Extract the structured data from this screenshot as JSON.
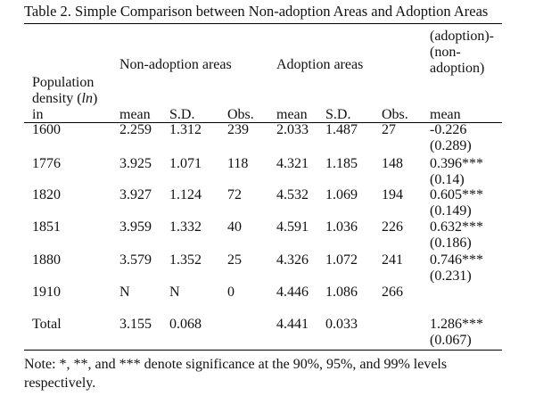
{
  "caption": "Table 2. Simple Comparison between Non-adoption Areas and Adoption Areas",
  "header": {
    "group_non_adoption": "Non-adoption areas",
    "group_adoption": "Adoption areas",
    "diff_label_lines": [
      "(adoption)-",
      "(non-",
      "adoption)"
    ],
    "row_label_lines": [
      "Population",
      "density (",
      "ln",
      ")",
      "in"
    ],
    "columns": [
      "mean",
      "S.D.",
      "Obs.",
      "mean",
      "S.D.",
      "Obs.",
      "mean"
    ]
  },
  "rows": [
    {
      "year": "1600",
      "na_mean": "2.259",
      "na_sd": "1.312",
      "na_obs": "239",
      "a_mean": "2.033",
      "a_sd": "1.487",
      "a_obs": "27",
      "diff": "-0.226",
      "diff_se": "(0.289)"
    },
    {
      "year": "1776",
      "na_mean": "3.925",
      "na_sd": "1.071",
      "na_obs": "118",
      "a_mean": "4.321",
      "a_sd": "1.185",
      "a_obs": "148",
      "diff": "0.396***",
      "diff_se": "(0.14)"
    },
    {
      "year": "1820",
      "na_mean": "3.927",
      "na_sd": "1.124",
      "na_obs": "72",
      "a_mean": "4.532",
      "a_sd": "1.069",
      "a_obs": "194",
      "diff": "0.605***",
      "diff_se": "(0.149)"
    },
    {
      "year": "1851",
      "na_mean": "3.959",
      "na_sd": "1.332",
      "na_obs": "40",
      "a_mean": "4.591",
      "a_sd": "1.036",
      "a_obs": "226",
      "diff": "0.632***",
      "diff_se": "(0.186)"
    },
    {
      "year": "1880",
      "na_mean": "3.579",
      "na_sd": "1.352",
      "na_obs": "25",
      "a_mean": "4.326",
      "a_sd": "1.072",
      "a_obs": "241",
      "diff": "0.746***",
      "diff_se": "(0.231)"
    },
    {
      "year": "1910",
      "na_mean": "N",
      "na_sd": "N",
      "na_obs": "0",
      "a_mean": "4.446",
      "a_sd": "1.086",
      "a_obs": "266",
      "diff": "",
      "diff_se": ""
    },
    {
      "year": "Total",
      "na_mean": "3.155",
      "na_sd": "0.068",
      "na_obs": "",
      "a_mean": "4.441",
      "a_sd": "0.033",
      "a_obs": "",
      "diff": "1.286***",
      "diff_se": "(0.067)"
    }
  ],
  "note": "Note: *, **, and *** denote significance at the 90%, 95%, and 99% levels respectively."
}
